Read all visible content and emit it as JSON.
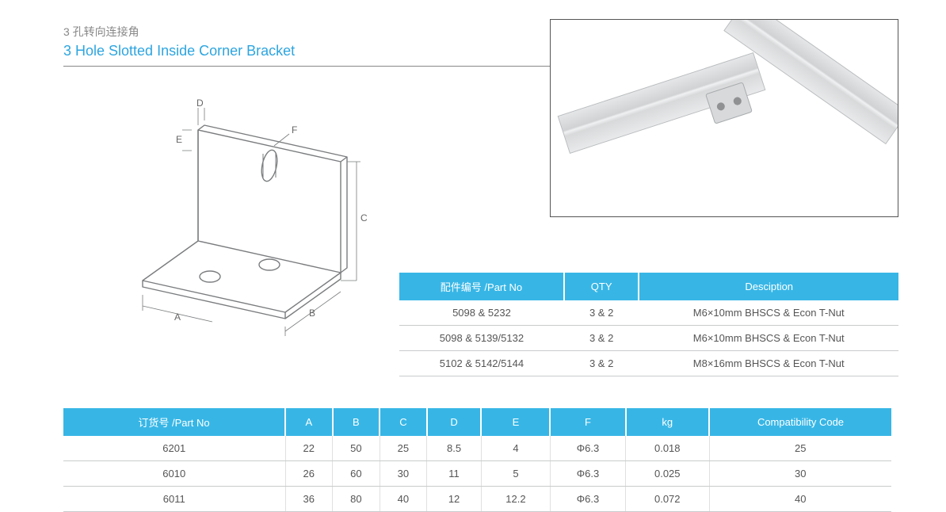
{
  "title_cn": "3 孔转向连接角",
  "title_en": "3 Hole Slotted Inside Corner Bracket",
  "drawing": {
    "dim_labels": [
      "A",
      "B",
      "C",
      "D",
      "E",
      "F"
    ],
    "stroke_color": "#7a7c7e",
    "stroke_width": 1.4
  },
  "photo": {
    "description": "Aluminum extrusion profiles joined with bracket"
  },
  "parts_table": {
    "header_bg": "#37b6e6",
    "headers": [
      "配件编号 /Part No",
      "QTY",
      "Desciption"
    ],
    "col_widths": [
      "33%",
      "15%",
      "52%"
    ],
    "rows": [
      [
        "5098 & 5232",
        "3 & 2",
        "M6×10mm BHSCS & Econ T-Nut"
      ],
      [
        "5098 & 5139/5132",
        "3 & 2",
        "M6×10mm BHSCS & Econ T-Nut"
      ],
      [
        "5102 & 5142/5144",
        "3 & 2",
        "M8×16mm BHSCS & Econ T-Nut"
      ]
    ]
  },
  "spec_table": {
    "header_bg": "#37b6e6",
    "headers": [
      "订货号 /Part No",
      "A",
      "B",
      "C",
      "D",
      "E",
      "F",
      "kg",
      "Compatibility Code"
    ],
    "rows": [
      [
        "6201",
        "22",
        "50",
        "25",
        "8.5",
        "4",
        "Φ6.3",
        "0.018",
        "25"
      ],
      [
        "6010",
        "26",
        "60",
        "30",
        "11",
        "5",
        "Φ6.3",
        "0.025",
        "30"
      ],
      [
        "6011",
        "36",
        "80",
        "40",
        "12",
        "12.2",
        "Φ6.3",
        "0.072",
        "40"
      ]
    ]
  },
  "colors": {
    "accent": "#37b6e6",
    "title_blue": "#2da5e0",
    "muted_text": "#888",
    "body_text": "#555",
    "table_row_border": "#c9cbcc"
  }
}
